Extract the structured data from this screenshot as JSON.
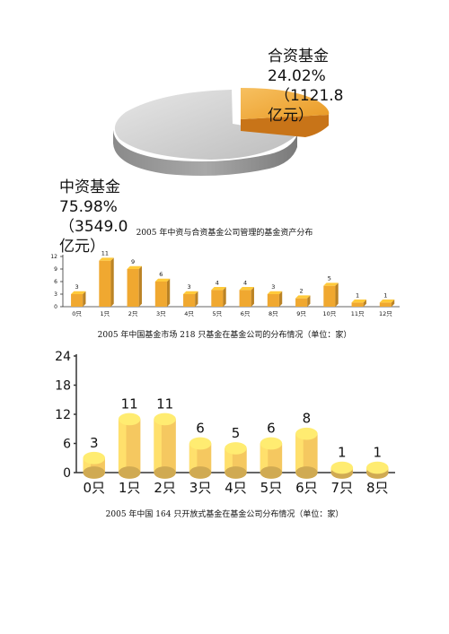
{
  "chart_data": [
    {
      "type": "pie",
      "title": "2005 年中资与合资基金公司管理的基金资产分布",
      "slices": [
        {
          "name": "合资基金",
          "percent_label": "24.02%",
          "value_label": "（1121.8亿元）",
          "value": 1121.8,
          "percent": 24.02,
          "color": "#f0a830"
        },
        {
          "name": "中资基金",
          "percent_label": "75.98%",
          "value_label": "（3549.0亿元）",
          "value": 3549.0,
          "percent": 75.98,
          "color": "#c8c8c8"
        }
      ]
    },
    {
      "type": "bar",
      "title": "2005 年中国基金市场 218 只基金在基金公司的分布情况（单位：家）",
      "categories": [
        "0只",
        "1只",
        "2只",
        "3只",
        "4只",
        "5只",
        "6只",
        "8只",
        "9只",
        "10只",
        "11只",
        "12只"
      ],
      "values": [
        3,
        11,
        9,
        6,
        3,
        4,
        4,
        3,
        2,
        5,
        1,
        1
      ],
      "yticks": [
        "0",
        "3",
        "6",
        "9",
        "12"
      ],
      "ylim": [
        0,
        12
      ],
      "color": "#f0a830"
    },
    {
      "type": "bar",
      "title": "2005 年中国 164 只开放式基金在基金公司分布情况（单位：家）",
      "categories": [
        "0只",
        "1只",
        "2只",
        "3只",
        "4只",
        "5只",
        "6只",
        "7只",
        "8只"
      ],
      "values": [
        3,
        11,
        11,
        6,
        5,
        6,
        8,
        1,
        1
      ],
      "yticks": [
        "0",
        "6",
        "12",
        "18",
        "24"
      ],
      "ylim": [
        0,
        24
      ],
      "color": "#f5c860"
    }
  ]
}
